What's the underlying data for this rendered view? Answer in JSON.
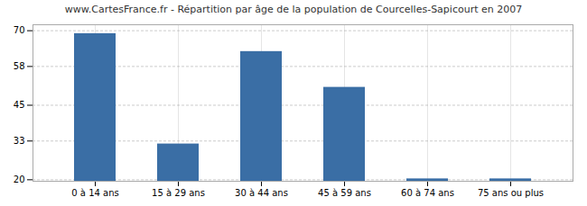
{
  "chart_data": {
    "type": "bar",
    "title": "www.CartesFrance.fr - Répartition par âge de la population de Courcelles-Sapicourt en 2007",
    "categories": [
      "0 à 14 ans",
      "15 à 29 ans",
      "30 à 44 ans",
      "45 à 59 ans",
      "60 à 74 ans",
      "75 ans ou plus"
    ],
    "values": [
      69,
      32,
      63,
      51,
      20.3,
      20.3
    ],
    "color": "#3a6ea5",
    "ylim": [
      19.5,
      72
    ],
    "yticks": [
      20,
      33,
      45,
      58,
      70
    ],
    "grid": true
  }
}
